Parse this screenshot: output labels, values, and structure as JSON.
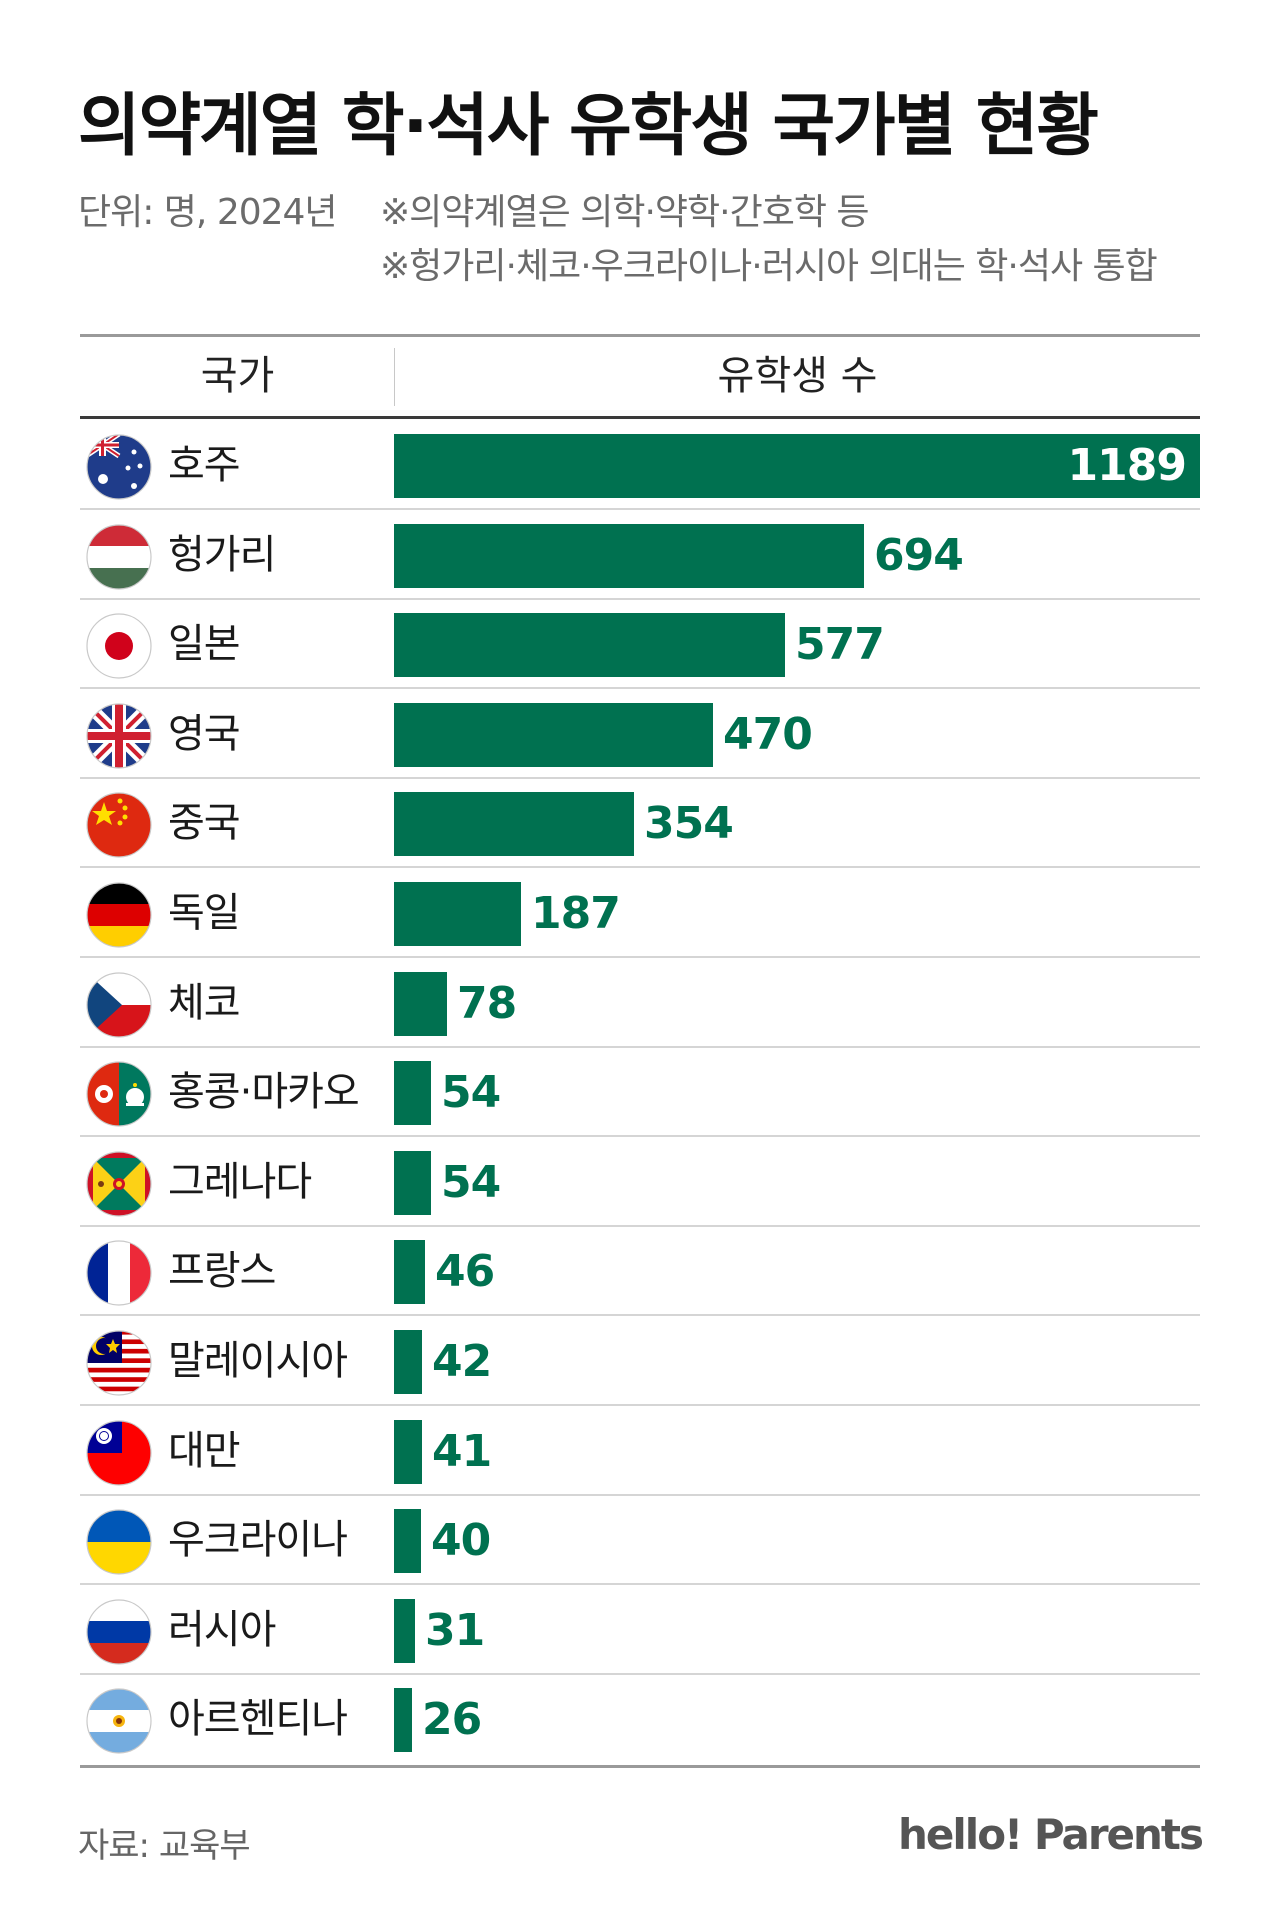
{
  "title": "의약계열 학·석사 유학생 국가별 현황",
  "unit_text": "단위: 명, 2024년",
  "notes": [
    "※의약계열은 의학·약학·간호학 등",
    "※헝가리·체코·우크라이나·러시아 의대는 학·석사 통합"
  ],
  "table_headers": {
    "country": "국가",
    "value": "유학생 수"
  },
  "colors": {
    "bar": "#007150",
    "label_outside": "#007150",
    "label_inside": "#ffffff"
  },
  "chart_data": {
    "type": "bar",
    "orientation": "horizontal",
    "categories": [
      "호주",
      "헝가리",
      "일본",
      "영국",
      "중국",
      "독일",
      "체코",
      "홍콩·마카오",
      "그레나다",
      "프랑스",
      "말레이시아",
      "대만",
      "우크라이나",
      "러시아",
      "아르헨티나"
    ],
    "values": [
      1189,
      694,
      577,
      470,
      354,
      187,
      78,
      54,
      54,
      46,
      42,
      41,
      40,
      31,
      26
    ],
    "value_labels": [
      "1189",
      "694",
      "577",
      "470",
      "354",
      "187",
      "78",
      "54",
      "54",
      "46",
      "42",
      "41",
      "40",
      "31",
      "26"
    ],
    "flags": [
      "australia-flag",
      "hungary-flag",
      "japan-flag",
      "uk-flag",
      "china-flag",
      "germany-flag",
      "czech-flag",
      "hongkong-macau-flag",
      "grenada-flag",
      "france-flag",
      "malaysia-flag",
      "taiwan-flag",
      "ukraine-flag",
      "russia-flag",
      "argentina-flag"
    ],
    "xlim": [
      0,
      1189
    ],
    "grid": false,
    "legend": "none"
  },
  "footer": {
    "source": "자료: 교육부",
    "brand": "hello! Parents"
  }
}
